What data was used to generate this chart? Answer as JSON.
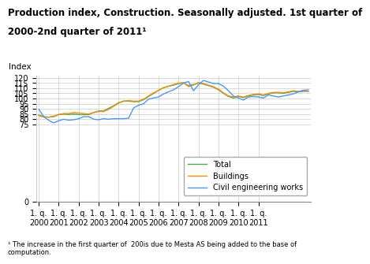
{
  "title_line1": "Production index, Construction. Seasonally adjusted. 1st quarter of",
  "title_line2": "2000-2nd quarter of 2011¹",
  "ylabel": "Index",
  "footnote": "¹ The increase in the first quarter of  200is due to Mesta AS being added to the base of\ncomputation.",
  "ylim": [
    0,
    122
  ],
  "yticks": [
    0,
    75,
    80,
    85,
    90,
    95,
    100,
    105,
    110,
    115,
    120
  ],
  "legend": [
    "Total",
    "Buildings",
    "Civil engineering works"
  ],
  "line_colors": [
    "#44aa44",
    "#ff8c00",
    "#4499ff"
  ],
  "x_labels": [
    "1. q.\n2000",
    "1. q.\n2001",
    "1. q.\n2002",
    "1. q.\n2003",
    "1. q.\n2004",
    "1. q.\n2005",
    "1. q.\n2006",
    "1. q.\n2007",
    "1. q.\n2008",
    "1. q.\n2009",
    "1. q.\n2010",
    "1. q.\n2011"
  ],
  "total": [
    84.0,
    82.5,
    82.0,
    82.5,
    84.5,
    85.0,
    84.5,
    85.0,
    84.5,
    84.5,
    84.5,
    86.5,
    88.0,
    88.0,
    90.5,
    93.0,
    96.0,
    97.5,
    97.5,
    97.0,
    97.0,
    99.0,
    102.0,
    105.0,
    108.0,
    110.5,
    112.0,
    113.0,
    114.5,
    115.0,
    112.5,
    113.5,
    115.0,
    114.0,
    112.5,
    111.0,
    108.5,
    105.0,
    102.0,
    100.5,
    102.0,
    101.0,
    102.5,
    103.5,
    104.0,
    103.0,
    104.5,
    105.5,
    105.5,
    105.0,
    106.0,
    107.0,
    106.5,
    107.0,
    107.0
  ],
  "buildings": [
    83.5,
    82.0,
    82.0,
    83.0,
    84.5,
    85.5,
    85.5,
    86.5,
    86.0,
    85.5,
    85.0,
    86.5,
    87.5,
    87.5,
    89.5,
    92.5,
    95.5,
    97.5,
    98.0,
    97.5,
    97.5,
    99.5,
    102.5,
    105.5,
    108.0,
    110.5,
    112.0,
    113.5,
    115.0,
    115.5,
    111.5,
    113.0,
    115.5,
    114.5,
    113.0,
    111.5,
    109.0,
    105.5,
    102.5,
    101.5,
    102.5,
    101.5,
    103.0,
    104.0,
    104.5,
    103.5,
    105.0,
    106.0,
    106.0,
    105.5,
    106.5,
    107.5,
    107.0,
    107.5,
    107.0
  ],
  "civil": [
    89.5,
    82.5,
    79.0,
    76.5,
    78.5,
    80.0,
    79.0,
    79.5,
    80.5,
    82.5,
    82.5,
    80.0,
    79.5,
    80.5,
    80.0,
    80.5,
    80.5,
    80.5,
    81.0,
    91.0,
    93.5,
    95.0,
    99.5,
    100.5,
    101.5,
    104.5,
    106.5,
    108.5,
    111.5,
    115.0,
    116.5,
    107.5,
    113.5,
    117.5,
    116.0,
    114.5,
    114.5,
    112.0,
    107.5,
    102.5,
    100.5,
    98.5,
    101.5,
    102.0,
    101.5,
    100.5,
    103.5,
    102.5,
    101.5,
    102.5,
    103.5,
    104.5,
    106.5,
    108.0,
    108.5
  ],
  "grid_color": "#cccccc",
  "bg_color": "#ffffff",
  "title_fontsize": 8.5,
  "label_fontsize": 7.5,
  "tick_fontsize": 7.0
}
